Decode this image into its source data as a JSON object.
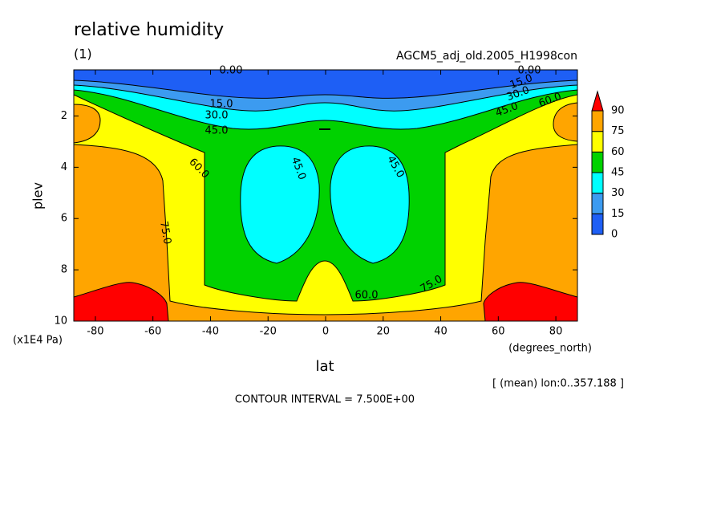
{
  "chart_data": {
    "type": "contour",
    "title": "relative humidity",
    "subtitle": "(1)",
    "dataset": "AGCM5_adj_old.2005_H1998con",
    "xlabel": "lat",
    "ylabel": "plev",
    "xunits": "(degrees_north)",
    "yunits": "(x1E4 Pa)",
    "note": "[ (mean) lon:0..357.188 ]",
    "footer": "CONTOUR INTERVAL = 7.500E+00",
    "xlim": [
      -87.5,
      87.5
    ],
    "xticks": [
      -80,
      -60,
      -40,
      -20,
      0,
      20,
      40,
      60,
      80
    ],
    "ylim": [
      10,
      0.2
    ],
    "yticks": [
      2,
      4,
      6,
      8,
      10
    ],
    "levels": [
      0,
      15,
      30,
      45,
      60,
      75,
      90
    ],
    "colors": [
      "#1e5ff5",
      "#3c9bf0",
      "#00ffff",
      "#00d200",
      "#ffff00",
      "#ffa500",
      "#ff0000"
    ],
    "contour_labels": [
      {
        "value": 0,
        "label": "0.00"
      },
      {
        "value": 0,
        "label": "0.00"
      },
      {
        "value": 15,
        "label": "15.0"
      },
      {
        "value": 15,
        "label": "15.0"
      },
      {
        "value": 30,
        "label": "30.0"
      },
      {
        "value": 30,
        "label": "30.0"
      },
      {
        "value": 45,
        "label": "45.0"
      },
      {
        "value": 45,
        "label": "45.0"
      },
      {
        "value": 60,
        "label": "60.0"
      },
      {
        "value": 60,
        "label": "60.0"
      },
      {
        "value": 45,
        "label": "45.0"
      },
      {
        "value": 45,
        "label": "45.0"
      },
      {
        "value": 75,
        "label": "75.0"
      },
      {
        "value": 60,
        "label": "60.0"
      },
      {
        "value": 75,
        "label": "75.0"
      }
    ]
  }
}
